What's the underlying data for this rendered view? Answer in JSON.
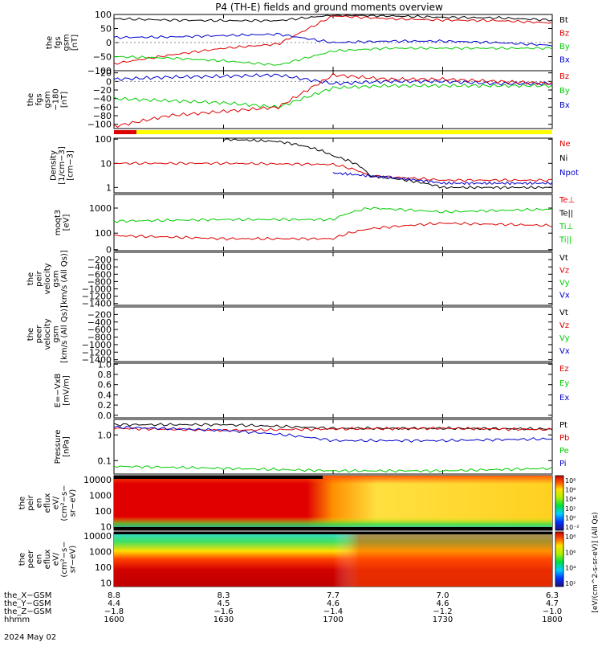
{
  "title": "P4 (TH-E) fields and ground moments overview",
  "date_label": "2024 May 02",
  "panels": [
    {
      "id": "fgs_gsm",
      "ylabel": [
        "the",
        "fgs",
        "gsm",
        "[nT]"
      ],
      "ticks": [
        "100",
        "50",
        "0",
        "−50",
        "−100"
      ],
      "legend": [
        {
          "label": "Bt",
          "color": "#000000"
        },
        {
          "label": "Bz",
          "color": "#dd0000"
        },
        {
          "label": "By",
          "color": "#00cc00"
        },
        {
          "label": "Bx",
          "color": "#0000cc"
        }
      ]
    },
    {
      "id": "fgs_gsm_m180",
      "ylabel": [
        "the",
        "fgs",
        "gsm",
        "−180",
        "[nT]"
      ],
      "ticks": [
        "20",
        "0",
        "−20",
        "−40",
        "−60",
        "−80",
        "−100"
      ],
      "legend": [
        {
          "label": "Bz",
          "color": "#dd0000"
        },
        {
          "label": "By",
          "color": "#00cc00"
        },
        {
          "label": "Bx",
          "color": "#0000cc"
        }
      ]
    },
    {
      "id": "density",
      "ylabel": [
        "Density",
        "[1/cm−3]",
        "[cm−3]"
      ],
      "ticks": [
        "100",
        "10",
        "1"
      ],
      "legend": [
        {
          "label": "Ne",
          "color": "#dd0000"
        },
        {
          "label": "Ni",
          "color": "#000000"
        },
        {
          "label": "Npot",
          "color": "#0000cc"
        }
      ]
    },
    {
      "id": "temperature",
      "ylabel": [
        "moqt3",
        "[eV]"
      ],
      "ticks": [
        "1000",
        "100",
        "0"
      ],
      "legend": [
        {
          "label": "Te⊥",
          "color": "#dd0000"
        },
        {
          "label": "Te||",
          "color": "#000000"
        },
        {
          "label": "Ti⊥",
          "color": "#00cc00"
        },
        {
          "label": "Ti||",
          "color": "#00cc00"
        }
      ]
    },
    {
      "id": "peir_velocity",
      "ylabel": [
        "the",
        "peir",
        "velocity",
        "gsm",
        "[km/s (All Qs)]"
      ],
      "ticks": [
        "−200",
        "−400",
        "−600",
        "−800",
        "−1000",
        "−1200",
        "−1400"
      ],
      "legend": [
        {
          "label": "Vt",
          "color": "#000000"
        },
        {
          "label": "Vz",
          "color": "#dd0000"
        },
        {
          "label": "Vy",
          "color": "#00cc00"
        },
        {
          "label": "Vx",
          "color": "#0000cc"
        }
      ]
    },
    {
      "id": "peer_velocity",
      "ylabel": [
        "the",
        "peer",
        "velocity",
        "gsm",
        "[km/s (All Qs)]"
      ],
      "ticks": [
        "−200",
        "−400",
        "−600",
        "−800",
        "−1000",
        "−1200",
        "−1400"
      ],
      "legend": [
        {
          "label": "Vt",
          "color": "#000000"
        },
        {
          "label": "Vz",
          "color": "#dd0000"
        },
        {
          "label": "Vy",
          "color": "#00cc00"
        },
        {
          "label": "Vx",
          "color": "#0000cc"
        }
      ]
    },
    {
      "id": "efield",
      "ylabel": [
        "E=−VxB",
        "[mV/m]"
      ],
      "ticks": [
        "1.0",
        "0.8",
        "0.6",
        "0.4",
        "0.2",
        "0.0"
      ],
      "legend": [
        {
          "label": "Ez",
          "color": "#dd0000"
        },
        {
          "label": "Ey",
          "color": "#00cc00"
        },
        {
          "label": "Ex",
          "color": "#0000cc"
        }
      ]
    },
    {
      "id": "pressure",
      "ylabel": [
        "Pressure",
        "[nPa]"
      ],
      "ticks": [
        "1.0",
        "0.1"
      ],
      "legend": [
        {
          "label": "Pt",
          "color": "#000000"
        },
        {
          "label": "Pb",
          "color": "#dd0000"
        },
        {
          "label": "Pe",
          "color": "#00cc00"
        },
        {
          "label": "Pi",
          "color": "#0000cc"
        }
      ]
    },
    {
      "id": "peir_eflux",
      "ylabel": [
        "the",
        "peir",
        "en",
        "eflux",
        "eV/",
        "(cm²−s−",
        "sr−eV)"
      ],
      "ticks": [
        "10000",
        "1000",
        "100",
        "10"
      ]
    },
    {
      "id": "peer_eflux",
      "ylabel": [
        "the",
        "peer",
        "en",
        "eflux",
        "eV/",
        "(cm²−s−",
        "sr−eV)"
      ],
      "ticks": [
        "10000",
        "1000",
        "100",
        "10"
      ]
    }
  ],
  "colorbar": {
    "label": "[eV/(cm^2-s-sr-eV)] (All Qs)",
    "top_ticks": [
      "10⁸",
      "10⁶",
      "10⁴",
      "10²",
      "10⁰",
      "10⁻²"
    ],
    "bottom_ticks": [
      "10⁸",
      "10⁶",
      "10⁴",
      "10²"
    ]
  },
  "x_axis": {
    "row_labels": [
      "the_X−GSM",
      "the_Y−GSM",
      "the_Z−GSM",
      "hhmm"
    ],
    "columns": [
      [
        "8.8",
        "4.4",
        "−1.8",
        "1600"
      ],
      [
        "8.3",
        "4.5",
        "−1.6",
        "1630"
      ],
      [
        "7.7",
        "4.6",
        "−1.4",
        "1700"
      ],
      [
        "7.0",
        "4.6",
        "−1.2",
        "1730"
      ],
      [
        "6.3",
        "4.7",
        "−1.0",
        "1800"
      ]
    ]
  },
  "chart_data": {
    "type": "line",
    "x_label": "hhmm",
    "x_ticks": [
      "1600",
      "1630",
      "1700",
      "1730",
      "1800"
    ],
    "series": [
      {
        "panel": "fgs_gsm",
        "name": "Bt",
        "color": "#000000",
        "x": [
          "1600",
          "1615",
          "1630",
          "1645",
          "1700",
          "1715",
          "1730",
          "1745",
          "1800"
        ],
        "values": [
          85,
          80,
          78,
          78,
          98,
          95,
          90,
          88,
          80
        ]
      },
      {
        "panel": "fgs_gsm",
        "name": "Bz",
        "color": "#dd0000",
        "x": [
          "1600",
          "1615",
          "1630",
          "1645",
          "1700",
          "1715",
          "1730",
          "1745",
          "1800"
        ],
        "values": [
          -75,
          -45,
          -20,
          -5,
          95,
          85,
          80,
          78,
          70
        ]
      },
      {
        "panel": "fgs_gsm",
        "name": "By",
        "color": "#00cc00",
        "x": [
          "1600",
          "1615",
          "1630",
          "1645",
          "1700",
          "1715",
          "1730",
          "1745",
          "1800"
        ],
        "values": [
          -50,
          -55,
          -65,
          -80,
          -30,
          -20,
          -20,
          -20,
          -20
        ]
      },
      {
        "panel": "fgs_gsm",
        "name": "Bx",
        "color": "#0000cc",
        "x": [
          "1600",
          "1615",
          "1630",
          "1645",
          "1700",
          "1715",
          "1730",
          "1745",
          "1800"
        ],
        "values": [
          18,
          20,
          25,
          30,
          0,
          5,
          5,
          0,
          -10
        ]
      },
      {
        "panel": "density",
        "name": "Ne",
        "color": "#dd0000",
        "x": [
          "1600",
          "1630",
          "1700",
          "1710",
          "1730",
          "1800"
        ],
        "values": [
          10,
          10,
          9,
          3,
          2,
          2
        ]
      },
      {
        "panel": "density",
        "name": "Ni",
        "color": "#000000",
        "x": [
          "1630",
          "1645",
          "1700",
          "1710",
          "1730",
          "1800"
        ],
        "values": [
          100,
          80,
          20,
          3,
          1,
          1
        ]
      },
      {
        "panel": "density",
        "name": "Npot",
        "color": "#0000cc",
        "x": [
          "1700",
          "1710",
          "1730",
          "1800"
        ],
        "values": [
          4,
          3,
          1.5,
          1.5
        ]
      },
      {
        "panel": "temperature",
        "name": "Ti⊥",
        "color": "#00cc00",
        "x": [
          "1600",
          "1630",
          "1700",
          "1710",
          "1730",
          "1800"
        ],
        "values": [
          300,
          350,
          350,
          1000,
          700,
          900
        ]
      },
      {
        "panel": "temperature",
        "name": "Te⊥",
        "color": "#dd0000",
        "x": [
          "1600",
          "1630",
          "1700",
          "1710",
          "1730",
          "1800"
        ],
        "values": [
          80,
          60,
          60,
          150,
          250,
          200
        ]
      },
      {
        "panel": "pressure",
        "name": "Pt",
        "color": "#000000",
        "x": [
          "1600",
          "1630",
          "1700",
          "1730",
          "1800"
        ],
        "values": [
          2.5,
          2.5,
          1.8,
          1.8,
          1.7
        ]
      },
      {
        "panel": "pressure",
        "name": "Pb",
        "color": "#dd0000",
        "x": [
          "1600",
          "1630",
          "1700",
          "1730",
          "1800"
        ],
        "values": [
          1.8,
          1.5,
          1.7,
          1.8,
          1.6
        ]
      },
      {
        "panel": "pressure",
        "name": "Pi",
        "color": "#0000cc",
        "x": [
          "1600",
          "1630",
          "1700",
          "1730",
          "1800"
        ],
        "values": [
          2.0,
          1.5,
          0.6,
          0.6,
          0.7
        ]
      },
      {
        "panel": "pressure",
        "name": "Pe",
        "color": "#00cc00",
        "x": [
          "1600",
          "1630",
          "1700",
          "1730",
          "1800"
        ],
        "values": [
          0.06,
          0.05,
          0.04,
          0.04,
          0.05
        ]
      }
    ]
  }
}
